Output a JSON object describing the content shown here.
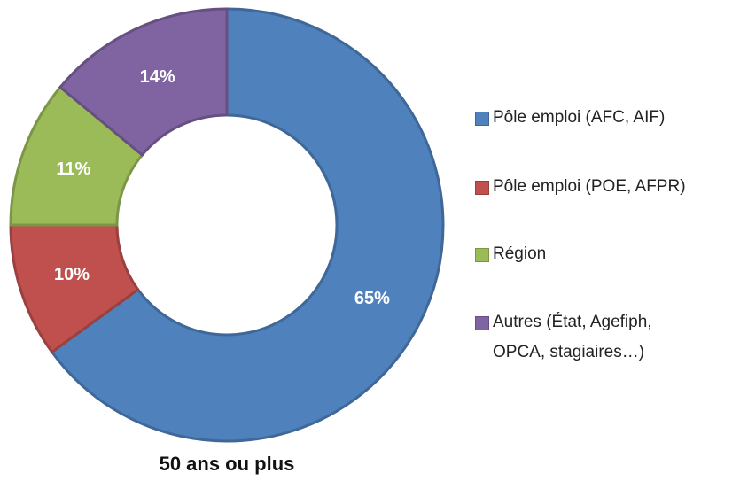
{
  "chart_data": {
    "type": "donut",
    "title": "50 ans ou plus",
    "categories": [
      "Pôle emploi (AFC, AIF)",
      "Pôle emploi (POE, AFPR)",
      "Région",
      "Autres (État, Agefiph, OPCA, stagiaires…)"
    ],
    "values": [
      65,
      10,
      11,
      14
    ],
    "value_labels": [
      "65%",
      "10%",
      "11%",
      "14%"
    ],
    "colors": [
      "#4f81bd",
      "#c0504d",
      "#9bbb59",
      "#8064a2"
    ],
    "legend": "right"
  }
}
